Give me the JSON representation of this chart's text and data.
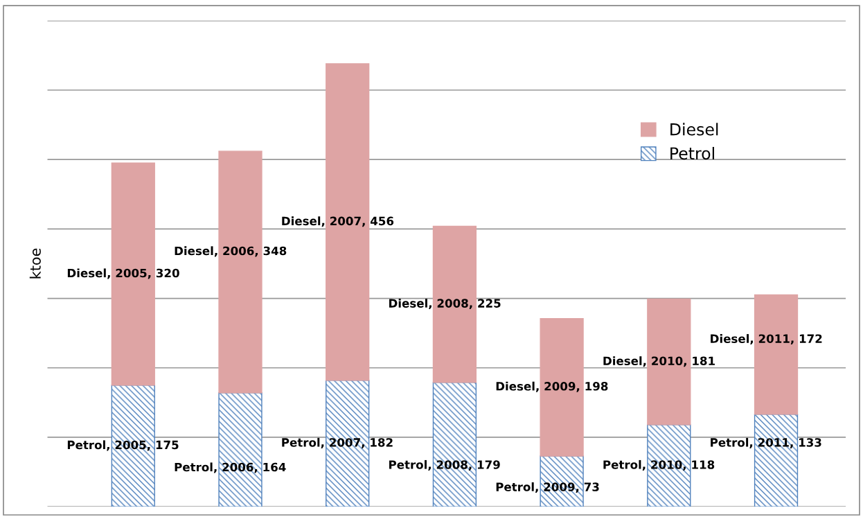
{
  "chart_data": {
    "type": "bar",
    "stacked": true,
    "ylabel": "ktoe",
    "categories": [
      null,
      null,
      null,
      null,
      null,
      null,
      null
    ],
    "series": [
      {
        "name": "Petrol",
        "color": "#4f81bd",
        "values": [
          175,
          164,
          182,
          179,
          73,
          118,
          133
        ],
        "value_labels": [
          "Petrol, 2005, 175",
          "Petrol, 2006, 164",
          "Petrol, 2007, 182",
          "Petrol, 2008, 179",
          "Petrol, 2009, 73",
          "Petrol, 2010, 118",
          "Petrol, 2011, 133"
        ]
      },
      {
        "name": "Diesel",
        "color": "#dea4a4",
        "values": [
          320,
          348,
          456,
          225,
          198,
          181,
          172
        ],
        "value_labels": [
          "Diesel, 2005, 320",
          "Diesel, 2006, 348",
          "Diesel, 2007, 456",
          "Diesel, 2008, 225",
          "Diesel, 2009, 198",
          "Diesel, 2010, 181",
          "Diesel, 2011, 172"
        ]
      }
    ],
    "ylim": [
      0,
      700
    ],
    "yticks": [
      {
        "value": 0,
        "label": null
      },
      {
        "value": 100,
        "label": null
      },
      {
        "value": 200,
        "label": null
      },
      {
        "value": 300,
        "label": null
      },
      {
        "value": 400,
        "label": null
      },
      {
        "value": 500,
        "label": null
      },
      {
        "value": 600,
        "label": null
      },
      {
        "value": 700,
        "label": null
      }
    ],
    "tick_labels": false,
    "grid": "y",
    "legend": "top right"
  }
}
